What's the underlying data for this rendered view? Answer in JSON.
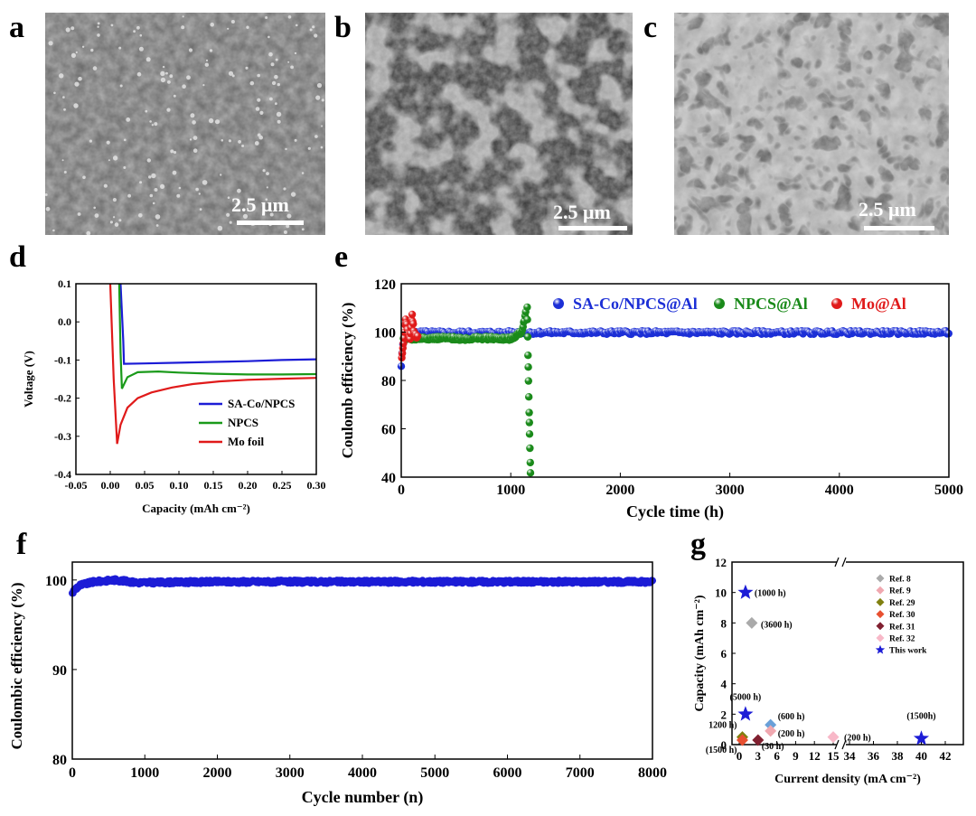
{
  "panels": {
    "a": "a",
    "b": "b",
    "c": "c",
    "d": "d",
    "e": "e",
    "f": "f",
    "g": "g"
  },
  "sem_images": [
    {
      "id": "a",
      "scale_label": "2.5 μm",
      "tone": "#7a7a7a"
    },
    {
      "id": "b",
      "scale_label": "2.5 μm",
      "tone": "#3a3a3a"
    },
    {
      "id": "c",
      "scale_label": "2.5 μm",
      "tone": "#6a6a6a"
    }
  ],
  "chart_data": [
    {
      "id": "d",
      "type": "line",
      "xlabel": "Capacity (mAh cm⁻²)",
      "ylabel": "Voltage (V)",
      "xlim": [
        -0.05,
        0.3
      ],
      "ylim": [
        -0.4,
        0.1
      ],
      "xticks": [
        "-0.05",
        "0.00",
        "0.05",
        "0.10",
        "0.15",
        "0.20",
        "0.25",
        "0.30"
      ],
      "yticks": [
        "0.1",
        "0.0",
        "-0.1",
        "-0.2",
        "-0.3",
        "-0.4"
      ],
      "series": [
        {
          "name": "SA-Co/NPCS",
          "color": "#1c1cd6",
          "x": [
            0.015,
            0.019,
            0.02,
            0.05,
            0.1,
            0.15,
            0.2,
            0.25,
            0.3
          ],
          "y": [
            0.1,
            -0.05,
            -0.11,
            -0.109,
            -0.107,
            -0.105,
            -0.103,
            -0.1,
            -0.098
          ]
        },
        {
          "name": "NPCS",
          "color": "#1a9a1a",
          "x": [
            0.013,
            0.015,
            0.017,
            0.025,
            0.04,
            0.07,
            0.1,
            0.15,
            0.2,
            0.25,
            0.3
          ],
          "y": [
            0.1,
            -0.08,
            -0.175,
            -0.145,
            -0.132,
            -0.13,
            -0.133,
            -0.136,
            -0.138,
            -0.138,
            -0.137
          ]
        },
        {
          "name": "Mo foil",
          "color": "#e01a1a",
          "x": [
            0.0,
            0.005,
            0.01,
            0.015,
            0.025,
            0.04,
            0.06,
            0.09,
            0.12,
            0.16,
            0.2,
            0.25,
            0.3
          ],
          "y": [
            0.1,
            -0.15,
            -0.32,
            -0.27,
            -0.225,
            -0.2,
            -0.185,
            -0.172,
            -0.163,
            -0.156,
            -0.152,
            -0.149,
            -0.147
          ]
        }
      ]
    },
    {
      "id": "e",
      "type": "scatter",
      "xlabel": "Cycle time (h)",
      "ylabel": "Coulomb efficiency (%)",
      "xlim": [
        0,
        5000
      ],
      "ylim": [
        40,
        120
      ],
      "xticks": [
        "0",
        "1000",
        "2000",
        "3000",
        "4000",
        "5000"
      ],
      "yticks": [
        "40",
        "60",
        "80",
        "100",
        "120"
      ],
      "series": [
        {
          "name": "SA-Co/NPCS@Al",
          "color": "#1c2fd6",
          "x": [
            0,
            10,
            20,
            60,
            120,
            200,
            1200,
            2000,
            3000,
            4000,
            5000
          ],
          "y": [
            86,
            92,
            97,
            99.5,
            99.8,
            99.8,
            99.8,
            99.8,
            99.8,
            99.8,
            99.8
          ]
        },
        {
          "name": "NPCS@Al",
          "color": "#1a8a1a",
          "x": [
            20,
            200,
            400,
            600,
            800,
            1000,
            1100,
            1150,
            1160,
            1170,
            1180
          ],
          "y": [
            97,
            97.5,
            97.5,
            97.3,
            97.5,
            97.2,
            100,
            111,
            85,
            62,
            42
          ]
        },
        {
          "name": "Mo@Al",
          "color": "#e01a1a",
          "x": [
            5,
            20,
            40,
            60,
            80,
            100,
            120,
            150
          ],
          "y": [
            90,
            95,
            105,
            100,
            97,
            107,
            99,
            98
          ]
        }
      ]
    },
    {
      "id": "f",
      "type": "scatter",
      "xlabel": "Cycle number (n)",
      "ylabel": "Coulombic efficiency (%)",
      "xlim": [
        0,
        8000
      ],
      "ylim": [
        80,
        102
      ],
      "xticks": [
        "0",
        "1000",
        "2000",
        "3000",
        "4000",
        "5000",
        "6000",
        "7000",
        "8000"
      ],
      "yticks": [
        "80",
        "90",
        "100"
      ],
      "series": [
        {
          "name": "",
          "color": "#1c1cd6",
          "x": [
            0,
            30,
            100,
            300,
            600,
            900,
            2000,
            4000,
            6000,
            8000
          ],
          "y": [
            98.5,
            98.9,
            99.4,
            99.8,
            100,
            99.7,
            99.8,
            99.8,
            99.8,
            99.8
          ]
        }
      ]
    },
    {
      "id": "g",
      "type": "scatter",
      "xlabel": "Current density (mA cm⁻²)",
      "ylabel": "Capacity (mAh cm⁻²)",
      "ylim": [
        0,
        12
      ],
      "xticks": [
        "0",
        "3",
        "6",
        "9",
        "12",
        "15",
        "34",
        "36",
        "38",
        "40",
        "42"
      ],
      "yticks": [
        "0",
        "2",
        "4",
        "6",
        "8",
        "10",
        "12"
      ],
      "legend": [
        {
          "name": "Ref. 8",
          "color": "#aaaaaa",
          "marker": "diamond"
        },
        {
          "name": "Ref. 9",
          "color": "#f0a8b0",
          "marker": "diamond"
        },
        {
          "name": "Ref. 29",
          "color": "#808010",
          "marker": "diamond"
        },
        {
          "name": "Ref. 30",
          "color": "#e85030",
          "marker": "diamond"
        },
        {
          "name": "Ref. 31",
          "color": "#802030",
          "marker": "diamond"
        },
        {
          "name": "Ref. 32",
          "color": "#f8b8c8",
          "marker": "diamond"
        },
        {
          "name": "This work",
          "color": "#1c1cd6",
          "marker": "star"
        }
      ],
      "points": [
        {
          "x": 1,
          "y": 10,
          "color": "#1c1cd6",
          "marker": "star",
          "label": "(1000 h)"
        },
        {
          "x": 2,
          "y": 8,
          "color": "#aaaaaa",
          "marker": "diamond",
          "label": "(3600 h)"
        },
        {
          "x": 1,
          "y": 2,
          "color": "#1c1cd6",
          "marker": "star",
          "label": "(5000 h)"
        },
        {
          "x": 5,
          "y": 1.3,
          "color": "#6aa0d8",
          "marker": "diamond",
          "label": "(600 h)"
        },
        {
          "x": 5,
          "y": 0.9,
          "color": "#f0a8b0",
          "marker": "diamond",
          "label": "(200 h)"
        },
        {
          "x": 0.5,
          "y": 0.5,
          "color": "#808010",
          "marker": "diamond",
          "label": "1200 h)"
        },
        {
          "x": 0.5,
          "y": 0.3,
          "color": "#e85030",
          "marker": "diamond",
          "label": "(1500 h)"
        },
        {
          "x": 3,
          "y": 0.3,
          "color": "#802030",
          "marker": "diamond",
          "label": "(30 h)"
        },
        {
          "x": 15,
          "y": 0.5,
          "color": "#f8b8c8",
          "marker": "diamond",
          "label": "(200 h)"
        },
        {
          "x": 40,
          "y": 0.4,
          "color": "#1c1cd6",
          "marker": "star",
          "label": "(1500h)"
        }
      ]
    }
  ]
}
